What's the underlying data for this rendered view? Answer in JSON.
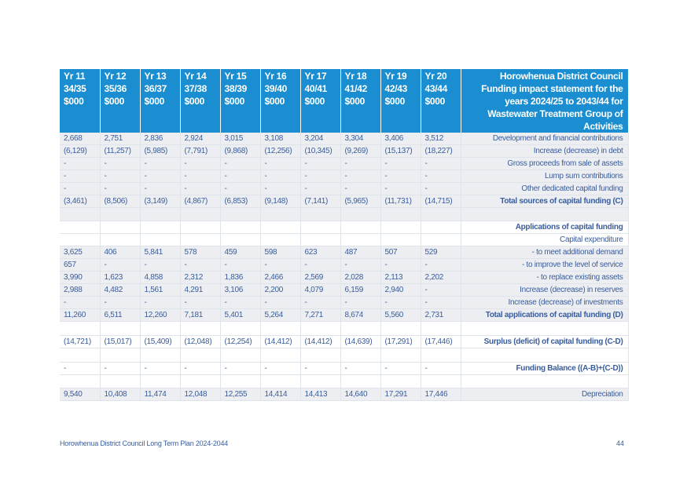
{
  "header": {
    "years": [
      {
        "yr": "Yr 11",
        "period": "34/35",
        "unit": "$000"
      },
      {
        "yr": "Yr 12",
        "period": "35/36",
        "unit": "$000"
      },
      {
        "yr": "Yr 13",
        "period": "36/37",
        "unit": "$000"
      },
      {
        "yr": "Yr 14",
        "period": "37/38",
        "unit": "$000"
      },
      {
        "yr": "Yr 15",
        "period": "38/39",
        "unit": "$000"
      },
      {
        "yr": "Yr 16",
        "period": "39/40",
        "unit": "$000"
      },
      {
        "yr": "Yr 17",
        "period": "40/41",
        "unit": "$000"
      },
      {
        "yr": "Yr 18",
        "period": "41/42",
        "unit": "$000"
      },
      {
        "yr": "Yr 19",
        "period": "42/43",
        "unit": "$000"
      },
      {
        "yr": "Yr 20",
        "period": "43/44",
        "unit": "$000"
      }
    ],
    "title": "Horowhenua District Council Funding impact statement for the years 2024/25 to 2043/44 for Wastewater Treatment Group of Activities"
  },
  "rows": [
    {
      "label": "Development and financial contributions",
      "values": [
        "2,668",
        "2,751",
        "2,836",
        "2,924",
        "3,015",
        "3,108",
        "3,204",
        "3,304",
        "3,406",
        "3,512"
      ]
    },
    {
      "label": "Increase (decrease) in debt",
      "values": [
        "(6,129)",
        "(11,257)",
        "(5,985)",
        "(7,791)",
        "(9,868)",
        "(12,256)",
        "(10,345)",
        "(9,269)",
        "(15,137)",
        "(18,227)"
      ]
    },
    {
      "label": "Gross proceeds from sale of assets",
      "values": [
        "-",
        "-",
        "-",
        "-",
        "-",
        "-",
        "-",
        "-",
        "-",
        "-"
      ]
    },
    {
      "label": "Lump sum contributions",
      "values": [
        "-",
        "-",
        "-",
        "-",
        "-",
        "-",
        "-",
        "-",
        "-",
        "-"
      ]
    },
    {
      "label": "Other dedicated capital funding",
      "values": [
        "-",
        "-",
        "-",
        "-",
        "-",
        "-",
        "-",
        "-",
        "-",
        "-"
      ]
    },
    {
      "label": "Total sources of capital funding (C)",
      "bold": true,
      "values": [
        "(3,461)",
        "(8,506)",
        "(3,149)",
        "(4,867)",
        "(6,853)",
        "(9,148)",
        "(7,141)",
        "(5,965)",
        "(11,731)",
        "(14,715)"
      ]
    },
    {
      "label": "",
      "values": [
        "",
        "",
        "",
        "",
        "",
        "",
        "",
        "",
        "",
        ""
      ]
    },
    {
      "label": "Applications of capital funding",
      "bold": true,
      "values": [
        "",
        "",
        "",
        "",
        "",
        "",
        "",
        "",
        "",
        ""
      ]
    },
    {
      "label": "Capital expenditure",
      "values": [
        "",
        "",
        "",
        "",
        "",
        "",
        "",
        "",
        "",
        ""
      ]
    },
    {
      "label": "- to meet additional demand",
      "values": [
        "3,625",
        "406",
        "5,841",
        "578",
        "459",
        "598",
        "623",
        "487",
        "507",
        "529"
      ]
    },
    {
      "label": "- to improve the level of service",
      "values": [
        "657",
        "-",
        "-",
        "-",
        "-",
        "-",
        "-",
        "-",
        "-",
        "-"
      ]
    },
    {
      "label": "- to replace existing assets",
      "values": [
        "3,990",
        "1,623",
        "4,858",
        "2,312",
        "1,836",
        "2,466",
        "2,569",
        "2,028",
        "2,113",
        "2,202"
      ]
    },
    {
      "label": "Increase (decrease) in reserves",
      "values": [
        "2,988",
        "4,482",
        "1,561",
        "4,291",
        "3,106",
        "2,200",
        "4,079",
        "6,159",
        "2,940",
        "-"
      ]
    },
    {
      "label": "Increase (decrease) of investments",
      "values": [
        "-",
        "-",
        "-",
        "-",
        "-",
        "-",
        "-",
        "-",
        "-",
        "-"
      ]
    },
    {
      "label": "Total applications of capital funding (D)",
      "bold": true,
      "values": [
        "11,260",
        "6,511",
        "12,260",
        "7,181",
        "5,401",
        "5,264",
        "7,271",
        "8,674",
        "5,560",
        "2,731"
      ]
    },
    {
      "label": "",
      "values": [
        "",
        "",
        "",
        "",
        "",
        "",
        "",
        "",
        "",
        ""
      ]
    },
    {
      "label": "Surplus (deficit) of capital funding (C-D)",
      "bold": true,
      "values": [
        "(14,721)",
        "(15,017)",
        "(15,409)",
        "(12,048)",
        "(12,254)",
        "(14,412)",
        "(14,412)",
        "(14,639)",
        "(17,291)",
        "(17,446)"
      ]
    },
    {
      "label": "",
      "values": [
        "",
        "",
        "",
        "",
        "",
        "",
        "",
        "",
        "",
        ""
      ]
    },
    {
      "label": "Funding Balance ((A-B)+(C-D))",
      "bold": true,
      "values": [
        "-",
        "-",
        "-",
        "-",
        "-",
        "-",
        "-",
        "-",
        "-",
        "-"
      ]
    },
    {
      "label": "",
      "values": [
        "",
        "",
        "",
        "",
        "",
        "",
        "",
        "",
        "",
        ""
      ]
    },
    {
      "label": "Depreciation",
      "values": [
        "9,540",
        "10,408",
        "11,474",
        "12,048",
        "12,255",
        "14,414",
        "14,413",
        "14,640",
        "17,291",
        "17,446"
      ]
    }
  ],
  "footer": {
    "left": "Horowhenua District Council Long Term Plan 2024-2044",
    "page": "44"
  }
}
